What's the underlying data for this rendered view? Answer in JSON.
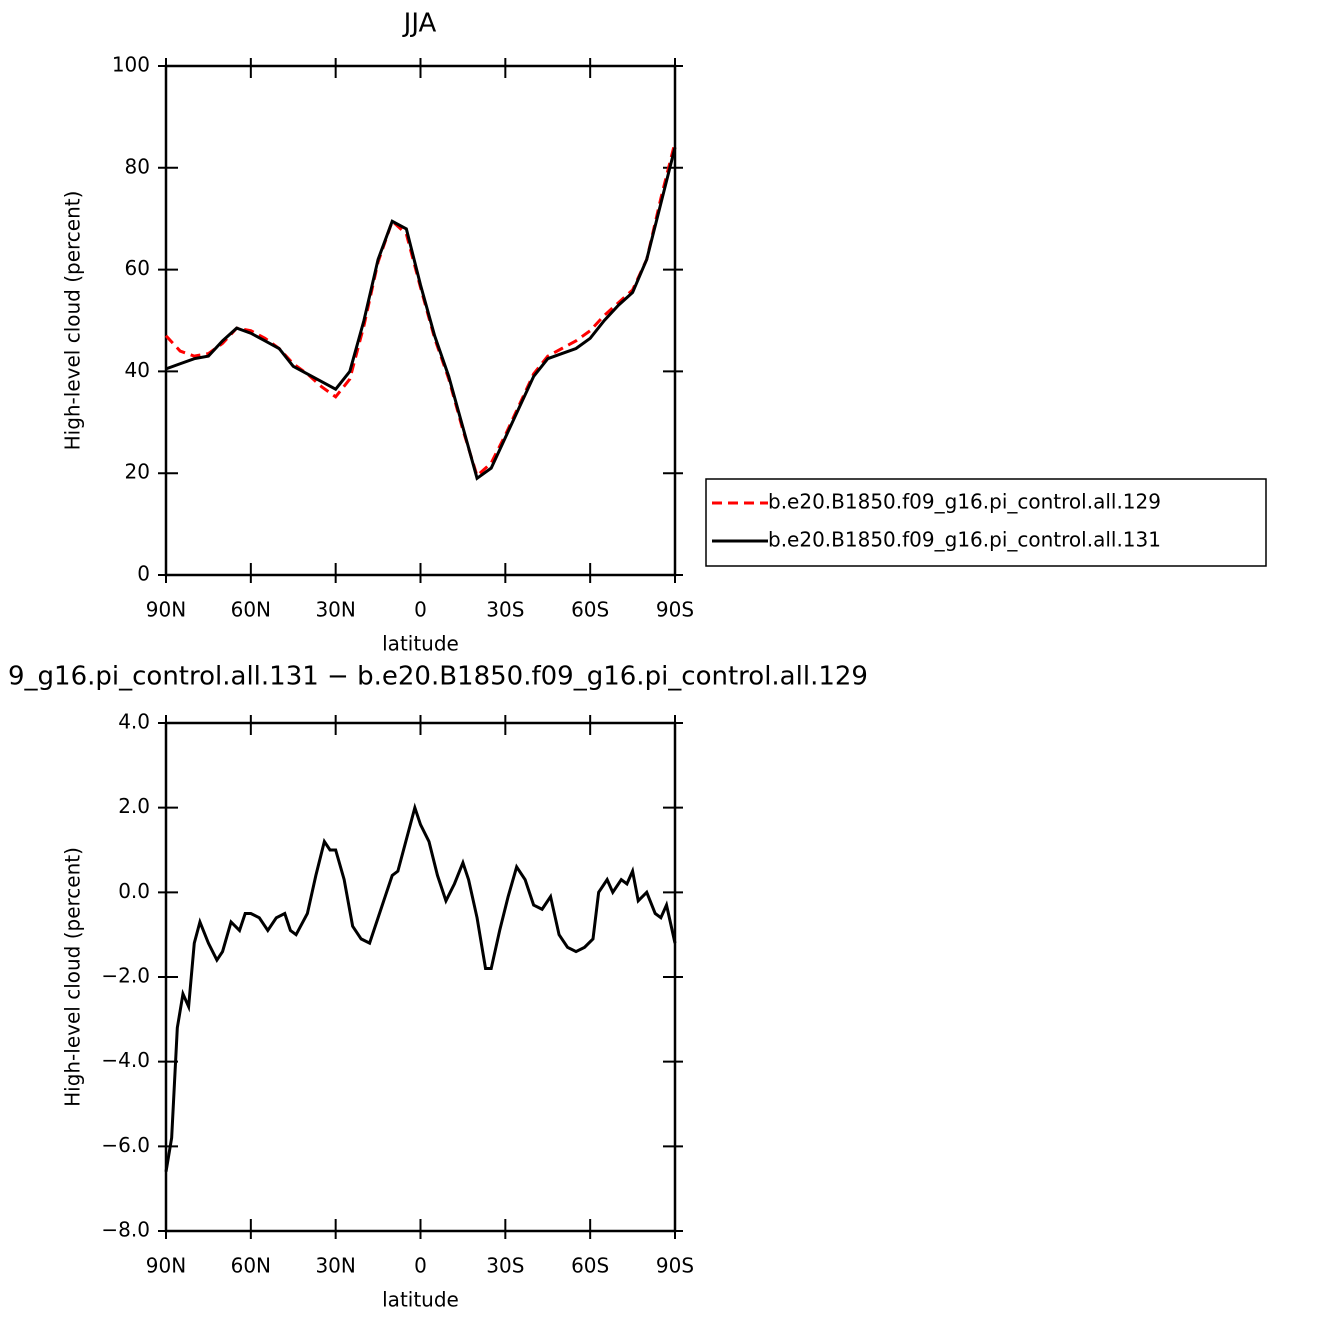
{
  "chart_data": [
    {
      "type": "line",
      "title": "JJA",
      "xlabel": "latitude",
      "ylabel": "High-level cloud (percent)",
      "x": [
        90,
        85,
        80,
        75,
        70,
        65,
        60,
        55,
        50,
        45,
        40,
        35,
        30,
        25,
        20,
        15,
        10,
        5,
        0,
        -5,
        -10,
        -15,
        -20,
        -25,
        -30,
        -35,
        -40,
        -45,
        -50,
        -55,
        -60,
        -65,
        -70,
        -75,
        -80,
        -85,
        -90
      ],
      "series": [
        {
          "name": "b.e20.B1850.f09_g16.pi_control.all.129",
          "color": "#ff0000",
          "linestyle": "dashed",
          "values": [
            47,
            44,
            43,
            43.5,
            45.5,
            48.5,
            48,
            46.5,
            44.5,
            41.5,
            39.5,
            37,
            35,
            38.5,
            49,
            61.5,
            69.5,
            67,
            56.5,
            46.5,
            38.5,
            28.5,
            19.5,
            22,
            27.5,
            33.5,
            39.5,
            43,
            44.5,
            46,
            48,
            51,
            53.5,
            56,
            62,
            74,
            85
          ]
        },
        {
          "name": "b.e20.B1850.f09_g16.pi_control.all.131",
          "color": "#000000",
          "linestyle": "solid",
          "values": [
            40.5,
            41.5,
            42.5,
            43,
            46,
            48.5,
            47.5,
            46,
            44.5,
            41,
            39.5,
            38,
            36.5,
            40,
            50,
            62,
            69.5,
            68,
            57,
            47,
            39,
            29,
            19,
            21,
            27,
            33,
            39,
            42.5,
            43.5,
            44.5,
            46.5,
            50,
            53,
            55.5,
            62,
            73,
            84
          ]
        }
      ],
      "xlim": [
        90,
        -90
      ],
      "xticks": [
        {
          "value": 90,
          "label": "90N"
        },
        {
          "value": 60,
          "label": "60N"
        },
        {
          "value": 30,
          "label": "30N"
        },
        {
          "value": 0,
          "label": "0"
        },
        {
          "value": -30,
          "label": "30S"
        },
        {
          "value": -60,
          "label": "60S"
        },
        {
          "value": -90,
          "label": "90S"
        }
      ],
      "ylim": [
        0,
        100
      ],
      "yticks": [
        0,
        20,
        40,
        60,
        80,
        100
      ],
      "legend": "right"
    },
    {
      "type": "line",
      "title": "9_g16.pi_control.all.131 − b.e20.B1850.f09_g16.pi_control.all.129",
      "xlabel": "latitude",
      "ylabel": "High-level cloud (percent)",
      "x": [
        90,
        88,
        86,
        84,
        82,
        80,
        78,
        75,
        72,
        70,
        67,
        64,
        62,
        60,
        57,
        54,
        51,
        48,
        46,
        44,
        40,
        37,
        34,
        32,
        30,
        27,
        24,
        21,
        18,
        15,
        12,
        10,
        8,
        6,
        4,
        2,
        0,
        -3,
        -6,
        -9,
        -12,
        -15,
        -17,
        -20,
        -23,
        -25,
        -28,
        -31,
        -34,
        -37,
        -40,
        -43,
        -46,
        -49,
        -52,
        -55,
        -58,
        -61,
        -63,
        -66,
        -68,
        -71,
        -73,
        -75,
        -77,
        -80,
        -83,
        -85,
        -87,
        -90
      ],
      "series": [
        {
          "color": "#000000",
          "linestyle": "solid",
          "values": [
            -6.6,
            -5.8,
            -3.2,
            -2.4,
            -2.7,
            -1.2,
            -0.7,
            -1.2,
            -1.6,
            -1.4,
            -0.7,
            -0.9,
            -0.5,
            -0.5,
            -0.6,
            -0.9,
            -0.6,
            -0.5,
            -0.9,
            -1.0,
            -0.5,
            0.4,
            1.2,
            1.0,
            1.0,
            0.3,
            -0.8,
            -1.1,
            -1.2,
            -0.6,
            0.0,
            0.4,
            0.5,
            1.0,
            1.5,
            2.0,
            1.6,
            1.2,
            0.4,
            -0.2,
            0.2,
            0.7,
            0.3,
            -0.6,
            -1.8,
            -1.8,
            -0.9,
            -0.1,
            0.6,
            0.3,
            -0.3,
            -0.4,
            -0.1,
            -1.0,
            -1.3,
            -1.4,
            -1.3,
            -1.1,
            0.0,
            0.3,
            0.0,
            0.3,
            0.2,
            0.5,
            -0.2,
            0.0,
            -0.5,
            -0.6,
            -0.3,
            -1.2
          ]
        }
      ],
      "xlim": [
        90,
        -90
      ],
      "xticks": [
        {
          "value": 90,
          "label": "90N"
        },
        {
          "value": 60,
          "label": "60N"
        },
        {
          "value": 30,
          "label": "30N"
        },
        {
          "value": 0,
          "label": "0"
        },
        {
          "value": -30,
          "label": "30S"
        },
        {
          "value": -60,
          "label": "60S"
        },
        {
          "value": -90,
          "label": "90S"
        }
      ],
      "ylim": [
        -8,
        4
      ],
      "yticks": [
        {
          "value": -8,
          "label": "−8.0"
        },
        {
          "value": -6,
          "label": "−6.0"
        },
        {
          "value": -4,
          "label": "−4.0"
        },
        {
          "value": -2,
          "label": "−2.0"
        },
        {
          "value": 0,
          "label": "0.0"
        },
        {
          "value": 2,
          "label": "2.0"
        },
        {
          "value": 4,
          "label": "4.0"
        }
      ]
    }
  ]
}
